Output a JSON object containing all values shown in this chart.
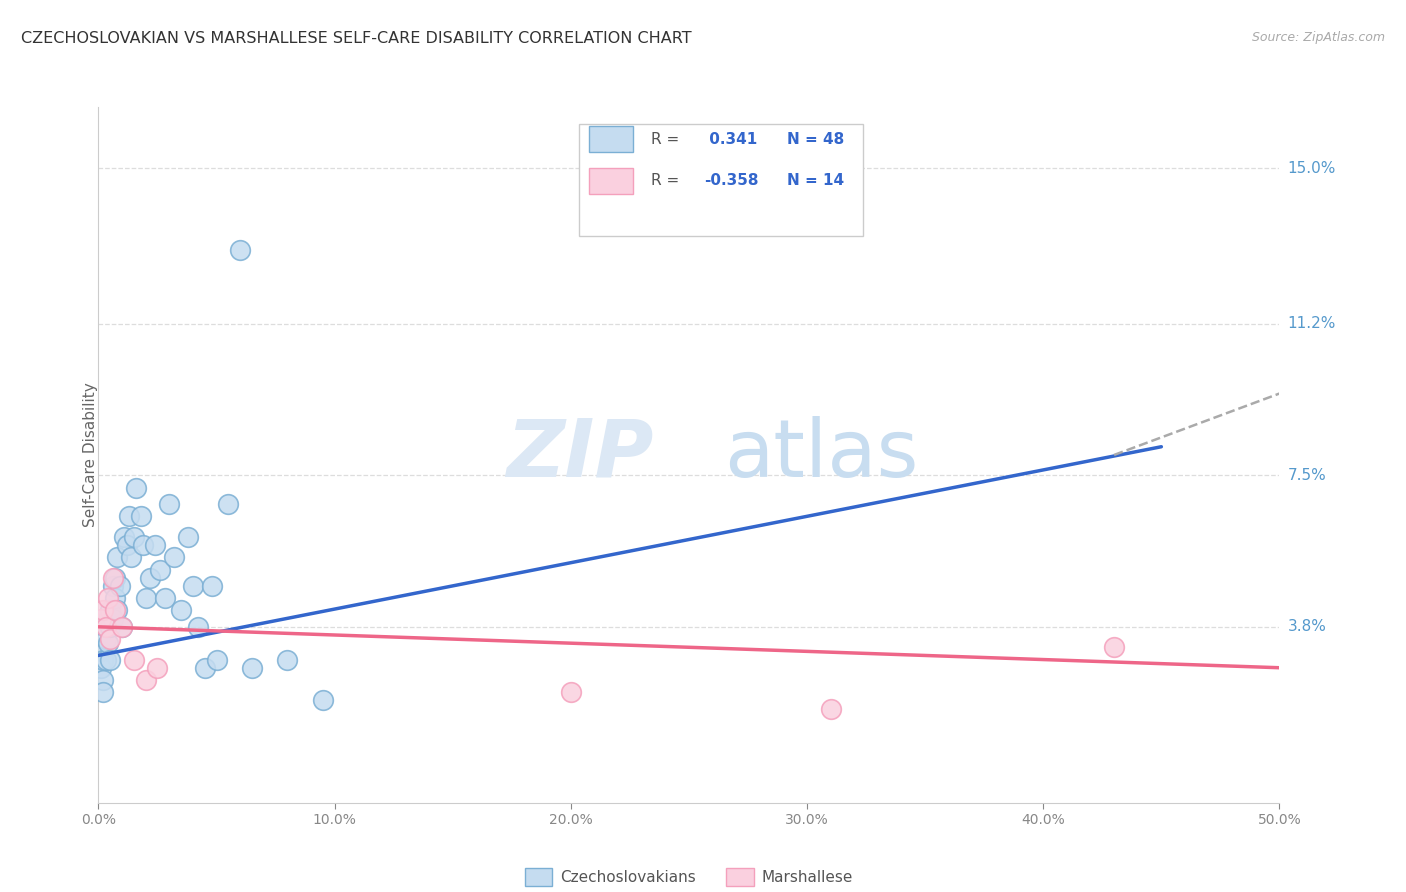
{
  "title": "CZECHOSLOVAKIAN VS MARSHALLESE SELF-CARE DISABILITY CORRELATION CHART",
  "source": "Source: ZipAtlas.com",
  "ylabel": "Self-Care Disability",
  "xlim": [
    0.0,
    0.5
  ],
  "ylim": [
    -0.005,
    0.165
  ],
  "yticks": [
    0.038,
    0.075,
    0.112,
    0.15
  ],
  "ytick_labels": [
    "3.8%",
    "7.5%",
    "11.2%",
    "15.0%"
  ],
  "xticks": [
    0.0,
    0.1,
    0.2,
    0.3,
    0.4,
    0.5
  ],
  "xtick_labels": [
    "0.0%",
    "10.0%",
    "20.0%",
    "30.0%",
    "40.0%",
    "50.0%"
  ],
  "blue_color": "#7bafd4",
  "blue_fill": "#c5dcf0",
  "pink_color": "#f4a0bc",
  "pink_fill": "#fad0df",
  "line_blue": "#3366cc",
  "line_pink": "#ee6688",
  "watermark_zip": "ZIP",
  "watermark_atlas": "atlas",
  "blue_dots_x": [
    0.001,
    0.001,
    0.002,
    0.002,
    0.002,
    0.003,
    0.003,
    0.003,
    0.004,
    0.004,
    0.005,
    0.005,
    0.005,
    0.006,
    0.006,
    0.007,
    0.007,
    0.008,
    0.008,
    0.009,
    0.01,
    0.011,
    0.012,
    0.013,
    0.014,
    0.015,
    0.016,
    0.018,
    0.019,
    0.02,
    0.022,
    0.024,
    0.026,
    0.028,
    0.03,
    0.032,
    0.035,
    0.038,
    0.04,
    0.042,
    0.045,
    0.048,
    0.05,
    0.055,
    0.06,
    0.065,
    0.08,
    0.095
  ],
  "blue_dots_y": [
    0.032,
    0.028,
    0.03,
    0.025,
    0.022,
    0.035,
    0.038,
    0.03,
    0.04,
    0.034,
    0.042,
    0.038,
    0.03,
    0.048,
    0.04,
    0.05,
    0.045,
    0.055,
    0.042,
    0.048,
    0.038,
    0.06,
    0.058,
    0.065,
    0.055,
    0.06,
    0.072,
    0.065,
    0.058,
    0.045,
    0.05,
    0.058,
    0.052,
    0.045,
    0.068,
    0.055,
    0.042,
    0.06,
    0.048,
    0.038,
    0.028,
    0.048,
    0.03,
    0.068,
    0.13,
    0.028,
    0.03,
    0.02
  ],
  "pink_dots_x": [
    0.001,
    0.002,
    0.003,
    0.004,
    0.005,
    0.006,
    0.007,
    0.01,
    0.015,
    0.02,
    0.025,
    0.2,
    0.31,
    0.43
  ],
  "pink_dots_y": [
    0.04,
    0.042,
    0.038,
    0.045,
    0.035,
    0.05,
    0.042,
    0.038,
    0.03,
    0.025,
    0.028,
    0.022,
    0.018,
    0.033
  ],
  "blue_line_x0": 0.0,
  "blue_line_x1": 0.45,
  "blue_line_y0": 0.031,
  "blue_line_y1": 0.082,
  "dash_line_x0": 0.43,
  "dash_line_x1": 0.5,
  "dash_line_y0": 0.08,
  "dash_line_y1": 0.095,
  "pink_line_x0": 0.0,
  "pink_line_x1": 0.5,
  "pink_line_y0": 0.038,
  "pink_line_y1": 0.028
}
